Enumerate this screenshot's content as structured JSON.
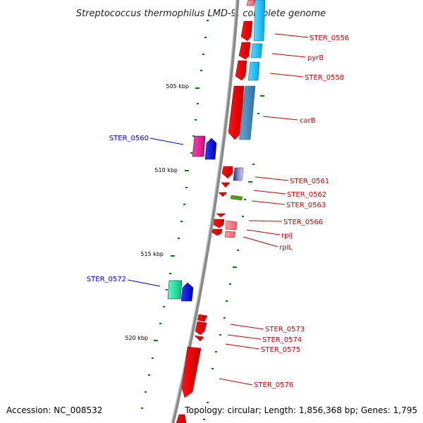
{
  "title": "Streptococcus thermophilus LMD-9, complete genome",
  "footer": {
    "accession": "Accession: NC_008532",
    "summary": "Topology: circular; Length: 1,856,368 bp; Genes: 1,795"
  },
  "colors": {
    "forward": "#ff0000",
    "reverse_strand_cds": "#1a44e0",
    "blue_cds": "#00c0ff",
    "label_red": "#cc0000",
    "label_blue": "#0000cc",
    "backbone": "#888888",
    "tick": "#007700"
  },
  "scale_labels": [
    "505 kbp",
    "510 kbp",
    "515 kbp",
    "520 kbp"
  ],
  "gene_labels": [
    {
      "text": "STER_0556",
      "color": "red"
    },
    {
      "text": "pyrB",
      "color": "red"
    },
    {
      "text": "STER_0558",
      "color": "red"
    },
    {
      "text": "carB",
      "color": "red"
    },
    {
      "text": "STER_0560",
      "color": "blue"
    },
    {
      "text": "STER_0561",
      "color": "red"
    },
    {
      "text": "STER_0562",
      "color": "red"
    },
    {
      "text": "STER_0563",
      "color": "red"
    },
    {
      "text": "STER_0566",
      "color": "red"
    },
    {
      "text": "rpIJ",
      "color": "red"
    },
    {
      "text": "rpIL",
      "color": "red"
    },
    {
      "text": "STER_0572",
      "color": "blue"
    },
    {
      "text": "STER_0573",
      "color": "red"
    },
    {
      "text": "STER_0574",
      "color": "red"
    },
    {
      "text": "STER_0575",
      "color": "red"
    },
    {
      "text": "STER_0576",
      "color": "red"
    }
  ]
}
